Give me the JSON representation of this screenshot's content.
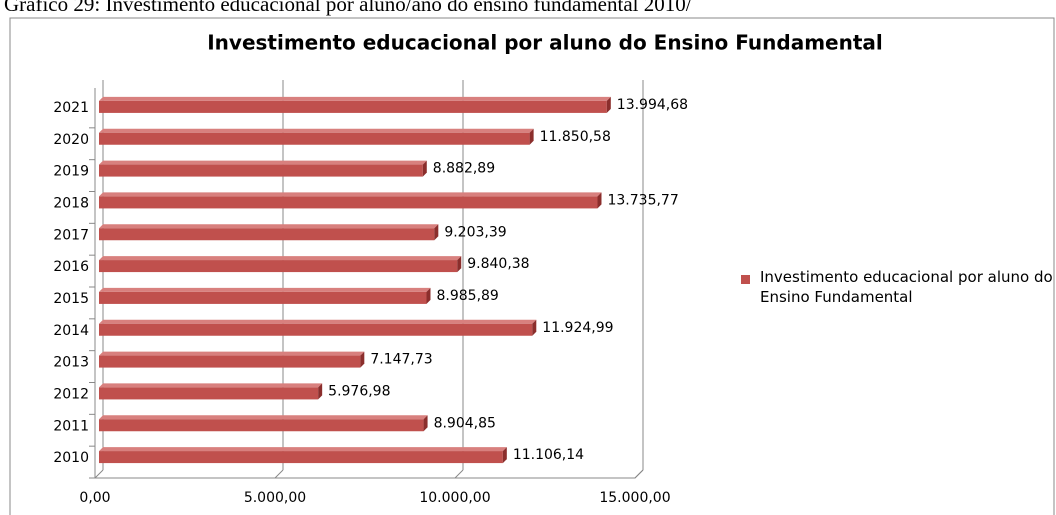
{
  "caption": "Gráfico 29: Investimento educacional por aluno/ano do ensino fundamental 2010/",
  "chart_data": {
    "type": "bar",
    "orientation": "horizontal",
    "title": "Investimento educacional por aluno do Ensino Fundamental",
    "categories": [
      "2010",
      "2011",
      "2012",
      "2013",
      "2014",
      "2015",
      "2016",
      "2017",
      "2018",
      "2019",
      "2020",
      "2021"
    ],
    "series": [
      {
        "name": "Investimento educacional por aluno do Ensino Fundamental",
        "color": "#c0504d",
        "values": [
          11106.14,
          8904.85,
          5976.98,
          7147.73,
          11924.99,
          8985.89,
          9840.38,
          9203.39,
          13735.77,
          8882.89,
          11850.58,
          13994.68
        ],
        "value_labels": [
          "11.106,14",
          "8.904,85",
          "5.976,98",
          "7.147,73",
          "11.924,99",
          "8.985,89",
          "9.840,38",
          "9.203,39",
          "13.735,77",
          "8.882,89",
          "11.850,58",
          "13.994,68"
        ]
      }
    ],
    "xlim": [
      0,
      15000
    ],
    "xticks": [
      {
        "value": 0,
        "label": "0,00"
      },
      {
        "value": 5000,
        "label": "5.000,00"
      },
      {
        "value": 10000,
        "label": "10.000,00"
      },
      {
        "value": 15000,
        "label": "15.000,00"
      }
    ],
    "grid": true,
    "legend": "right"
  }
}
